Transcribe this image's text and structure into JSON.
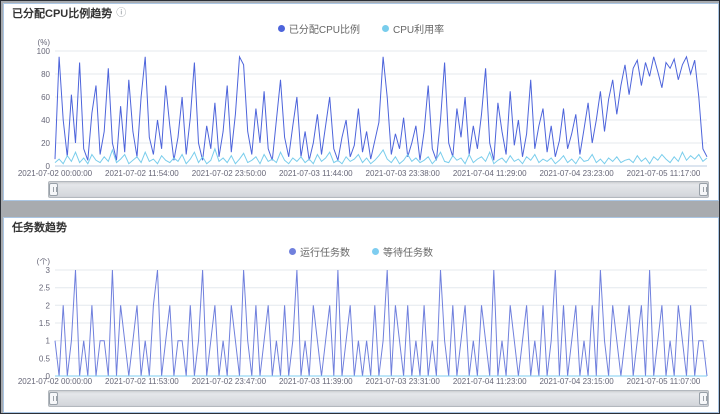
{
  "cpu_card": {
    "info_icon": "ⓘ"
  },
  "chart_data": [
    {
      "type": "line",
      "title": "已分配CPU比例趋势",
      "unit_label": "(%)",
      "ylim": [
        0,
        100
      ],
      "yticks": [
        100,
        80,
        60,
        40,
        20,
        0
      ],
      "grid": true,
      "legend_position": "top-center",
      "x_tick_labels": [
        "2021-07-02 00:00:00",
        "2021-07-02 11:54:00",
        "2021-07-02 23:50:00",
        "2021-07-03 11:44:00",
        "2021-07-03 23:38:00",
        "2021-07-04 11:29:00",
        "2021-07-04 23:23:00",
        "2021-07-05 11:17:00"
      ],
      "series": [
        {
          "name": "已分配CPU比例",
          "color": "#4d64db",
          "values": [
            6,
            95,
            40,
            8,
            62,
            20,
            90,
            15,
            5,
            46,
            70,
            10,
            30,
            85,
            20,
            5,
            52,
            12,
            75,
            30,
            8,
            60,
            95,
            25,
            10,
            40,
            15,
            70,
            35,
            5,
            25,
            60,
            10,
            42,
            90,
            20,
            5,
            35,
            15,
            55,
            8,
            30,
            70,
            12,
            45,
            95,
            88,
            30,
            10,
            50,
            20,
            65,
            15,
            5,
            40,
            75,
            25,
            8,
            35,
            60,
            8,
            30,
            5,
            20,
            45,
            10,
            35,
            60,
            15,
            5,
            25,
            40,
            8,
            18,
            50,
            12,
            30,
            6,
            22,
            38,
            95,
            60,
            10,
            28,
            15,
            42,
            8,
            20,
            35,
            5,
            30,
            70,
            15,
            5,
            40,
            90,
            20,
            8,
            50,
            25,
            60,
            10,
            35,
            15,
            45,
            85,
            20,
            5,
            55,
            30,
            10,
            65,
            18,
            40,
            8,
            28,
            75,
            15,
            35,
            50,
            12,
            35,
            8,
            22,
            50,
            15,
            28,
            45,
            10,
            32,
            55,
            20,
            40,
            65,
            30,
            58,
            75,
            45,
            70,
            88,
            62,
            85,
            92,
            70,
            90,
            78,
            95,
            82,
            68,
            90,
            85,
            93,
            75,
            88,
            95,
            80,
            92,
            60,
            15,
            8
          ]
        },
        {
          "name": "CPU利用率",
          "color": "#79cdec",
          "values": [
            3,
            6,
            2,
            9,
            4,
            12,
            3,
            7,
            2,
            10,
            5,
            3,
            8,
            4,
            14,
            3,
            6,
            10,
            2,
            5,
            8,
            3,
            12,
            4,
            6,
            2,
            9,
            5,
            3,
            7,
            4,
            10,
            2,
            6,
            12,
            3,
            8,
            2,
            5,
            15,
            4,
            7,
            3,
            9,
            2,
            6,
            11,
            3,
            5,
            8,
            2,
            10,
            4,
            6,
            3,
            12,
            5,
            2,
            7,
            4,
            8,
            3,
            6,
            2,
            10,
            4,
            7,
            12,
            3,
            5,
            2,
            8,
            4,
            6,
            10,
            3,
            7,
            2,
            5,
            9,
            14,
            6,
            3,
            8,
            2,
            5,
            10,
            4,
            7,
            3,
            5,
            8,
            2,
            6,
            12,
            4,
            3,
            9,
            5,
            7,
            2,
            10,
            3,
            6,
            8,
            4,
            12,
            2,
            5,
            7,
            3,
            9,
            4,
            6,
            2,
            8,
            5,
            10,
            3,
            6,
            4,
            7,
            2,
            5,
            9,
            3,
            6,
            2,
            8,
            4,
            5,
            10,
            3,
            6,
            2,
            7,
            4,
            8,
            3,
            5,
            6,
            3,
            9,
            4,
            7,
            2,
            8,
            5,
            10,
            6,
            3,
            8,
            4,
            12,
            5,
            9,
            6,
            10,
            4,
            7
          ]
        }
      ]
    },
    {
      "type": "line",
      "title": "任务数趋势",
      "unit_label": "(个)",
      "ylim": [
        0,
        3
      ],
      "yticks": [
        3,
        2.5,
        2,
        1.5,
        1,
        0.5,
        0
      ],
      "grid": true,
      "legend_position": "top-center",
      "x_tick_labels": [
        "2021-07-02 00:00:00",
        "2021-07-02 11:53:00",
        "2021-07-02 23:47:00",
        "2021-07-03 11:39:00",
        "2021-07-03 23:31:00",
        "2021-07-04 11:23:00",
        "2021-07-04 23:15:00",
        "2021-07-05 11:07:00"
      ],
      "series": [
        {
          "name": "运行任务数",
          "color": "#7080dd",
          "values": [
            1,
            0,
            2,
            0,
            1,
            3,
            0,
            1,
            0,
            2,
            0,
            1,
            1,
            0,
            3,
            0,
            2,
            1,
            0,
            1,
            2,
            0,
            1,
            0,
            2,
            3,
            0,
            1,
            2,
            0,
            1,
            1,
            0,
            2,
            0,
            1,
            3,
            0,
            1,
            2,
            0,
            1,
            0,
            2,
            1,
            0,
            3,
            1,
            0,
            2,
            0,
            1,
            2,
            0,
            1,
            0,
            2,
            0,
            1,
            3,
            0,
            1,
            0,
            2,
            1,
            0,
            1,
            2,
            0,
            3,
            0,
            1,
            2,
            0,
            1,
            0,
            1,
            0,
            2,
            0,
            1,
            3,
            0,
            2,
            1,
            0,
            2,
            0,
            1,
            0,
            2,
            0,
            1,
            0,
            3,
            1,
            0,
            2,
            0,
            1,
            2,
            0,
            1,
            0,
            2,
            1,
            0,
            3,
            0,
            1,
            0,
            2,
            1,
            0,
            1,
            2,
            0,
            1,
            0,
            2,
            0,
            1,
            3,
            0,
            2,
            0,
            1,
            2,
            0,
            1,
            0,
            2,
            0,
            3,
            1,
            0,
            2,
            1,
            0,
            1,
            2,
            0,
            1,
            2,
            0,
            3,
            0,
            1,
            2,
            0,
            1,
            0,
            2,
            1,
            0,
            2,
            0,
            1,
            1,
            0
          ]
        },
        {
          "name": "等待任务数",
          "color": "#7ecdf0",
          "constant": 0,
          "count": 160
        }
      ]
    }
  ]
}
